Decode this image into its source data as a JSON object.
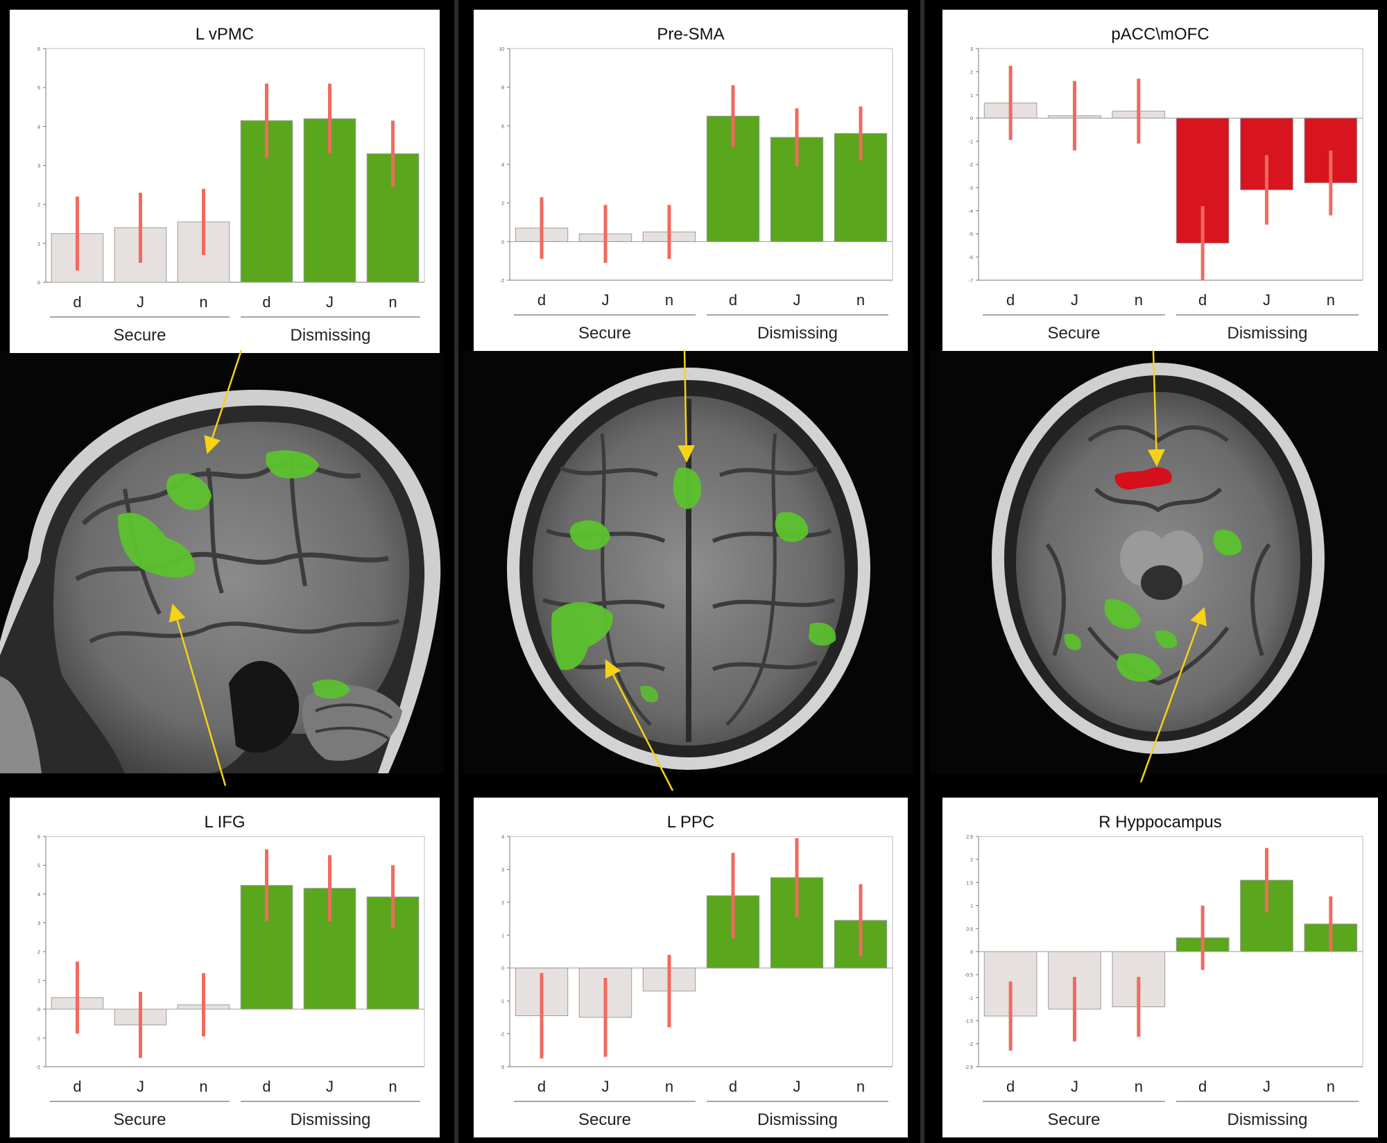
{
  "chart_data": [
    {
      "type": "bar",
      "title": "L vPMC",
      "categories": [
        "d",
        "J",
        "n",
        "d",
        "J",
        "n"
      ],
      "groups": [
        "Secure",
        "Dismissing"
      ],
      "values": [
        1.25,
        1.4,
        1.55,
        4.15,
        4.2,
        3.3
      ],
      "errors": [
        0.95,
        0.9,
        0.85,
        0.95,
        0.9,
        0.85
      ],
      "ylim": [
        0,
        6
      ],
      "yticks": [
        0,
        1,
        2,
        3,
        4,
        5,
        6
      ],
      "colors": [
        "#e6e1de",
        "#e6e1de",
        "#e6e1de",
        "#5aa61c",
        "#5aa61c",
        "#5aa61c"
      ]
    },
    {
      "type": "bar",
      "title": "Pre-SMA",
      "categories": [
        "d",
        "J",
        "n",
        "d",
        "J",
        "n"
      ],
      "groups": [
        "Secure",
        "Dismissing"
      ],
      "values": [
        0.7,
        0.4,
        0.5,
        6.5,
        5.4,
        5.6
      ],
      "errors": [
        1.6,
        1.5,
        1.4,
        1.6,
        1.5,
        1.4
      ],
      "ylim": [
        -2,
        10
      ],
      "yticks": [
        -2,
        0,
        2,
        4,
        6,
        8,
        10
      ],
      "colors": [
        "#e6e1de",
        "#e6e1de",
        "#e6e1de",
        "#5aa61c",
        "#5aa61c",
        "#5aa61c"
      ]
    },
    {
      "type": "bar",
      "title": "pACC\\mOFC",
      "categories": [
        "d",
        "J",
        "n",
        "d",
        "J",
        "n"
      ],
      "groups": [
        "Secure",
        "Dismissing"
      ],
      "values": [
        0.65,
        0.1,
        0.3,
        -5.4,
        -3.1,
        -2.8
      ],
      "errors": [
        1.6,
        1.5,
        1.4,
        1.6,
        1.5,
        1.4
      ],
      "ylim": [
        -7,
        3
      ],
      "yticks": [
        -7,
        -6,
        -5,
        -4,
        -3,
        -2,
        -1,
        0,
        1,
        2,
        3
      ],
      "colors": [
        "#e6e1de",
        "#e6e1de",
        "#e6e1de",
        "#d8151f",
        "#d8151f",
        "#d8151f"
      ]
    },
    {
      "type": "bar",
      "title": "L IFG",
      "categories": [
        "d",
        "J",
        "n",
        "d",
        "J",
        "n"
      ],
      "groups": [
        "Secure",
        "Dismissing"
      ],
      "values": [
        0.4,
        -0.55,
        0.15,
        4.3,
        4.2,
        3.9
      ],
      "errors": [
        1.25,
        1.15,
        1.1,
        1.25,
        1.15,
        1.1
      ],
      "ylim": [
        -2,
        6
      ],
      "yticks": [
        -2,
        -1,
        0,
        1,
        2,
        3,
        4,
        5,
        6
      ],
      "colors": [
        "#e6e1de",
        "#e6e1de",
        "#e6e1de",
        "#5aa61c",
        "#5aa61c",
        "#5aa61c"
      ]
    },
    {
      "type": "bar",
      "title": "L PPC",
      "categories": [
        "d",
        "J",
        "n",
        "d",
        "J",
        "n"
      ],
      "groups": [
        "Secure",
        "Dismissing"
      ],
      "values": [
        -1.45,
        -1.5,
        -0.7,
        2.2,
        2.75,
        1.45
      ],
      "errors": [
        1.3,
        1.2,
        1.1,
        1.3,
        1.2,
        1.1
      ],
      "ylim": [
        -3,
        4
      ],
      "yticks": [
        -3,
        -2,
        -1,
        0,
        1,
        2,
        3,
        4
      ],
      "colors": [
        "#e6e1de",
        "#e6e1de",
        "#e6e1de",
        "#5aa61c",
        "#5aa61c",
        "#5aa61c"
      ]
    },
    {
      "type": "bar",
      "title": "R Hyppocampus",
      "categories": [
        "d",
        "J",
        "n",
        "d",
        "J",
        "n"
      ],
      "groups": [
        "Secure",
        "Dismissing"
      ],
      "values": [
        -1.4,
        -1.25,
        -1.2,
        0.3,
        1.55,
        0.6
      ],
      "errors": [
        0.75,
        0.7,
        0.65,
        0.7,
        0.7,
        0.6
      ],
      "ylim": [
        -2.5,
        2.5
      ],
      "yticks": [
        -2.5,
        -2,
        -1.5,
        -1,
        -0.5,
        0,
        0.5,
        1,
        1.5,
        2,
        2.5
      ],
      "colors": [
        "#e6e1de",
        "#e6e1de",
        "#e6e1de",
        "#5aa61c",
        "#5aa61c",
        "#5aa61c"
      ]
    }
  ],
  "colors": {
    "error_bar": "#f06a5e",
    "green_activation": "#5bc22c",
    "red_activation": "#d4101c",
    "arrow": "#f5d316"
  }
}
